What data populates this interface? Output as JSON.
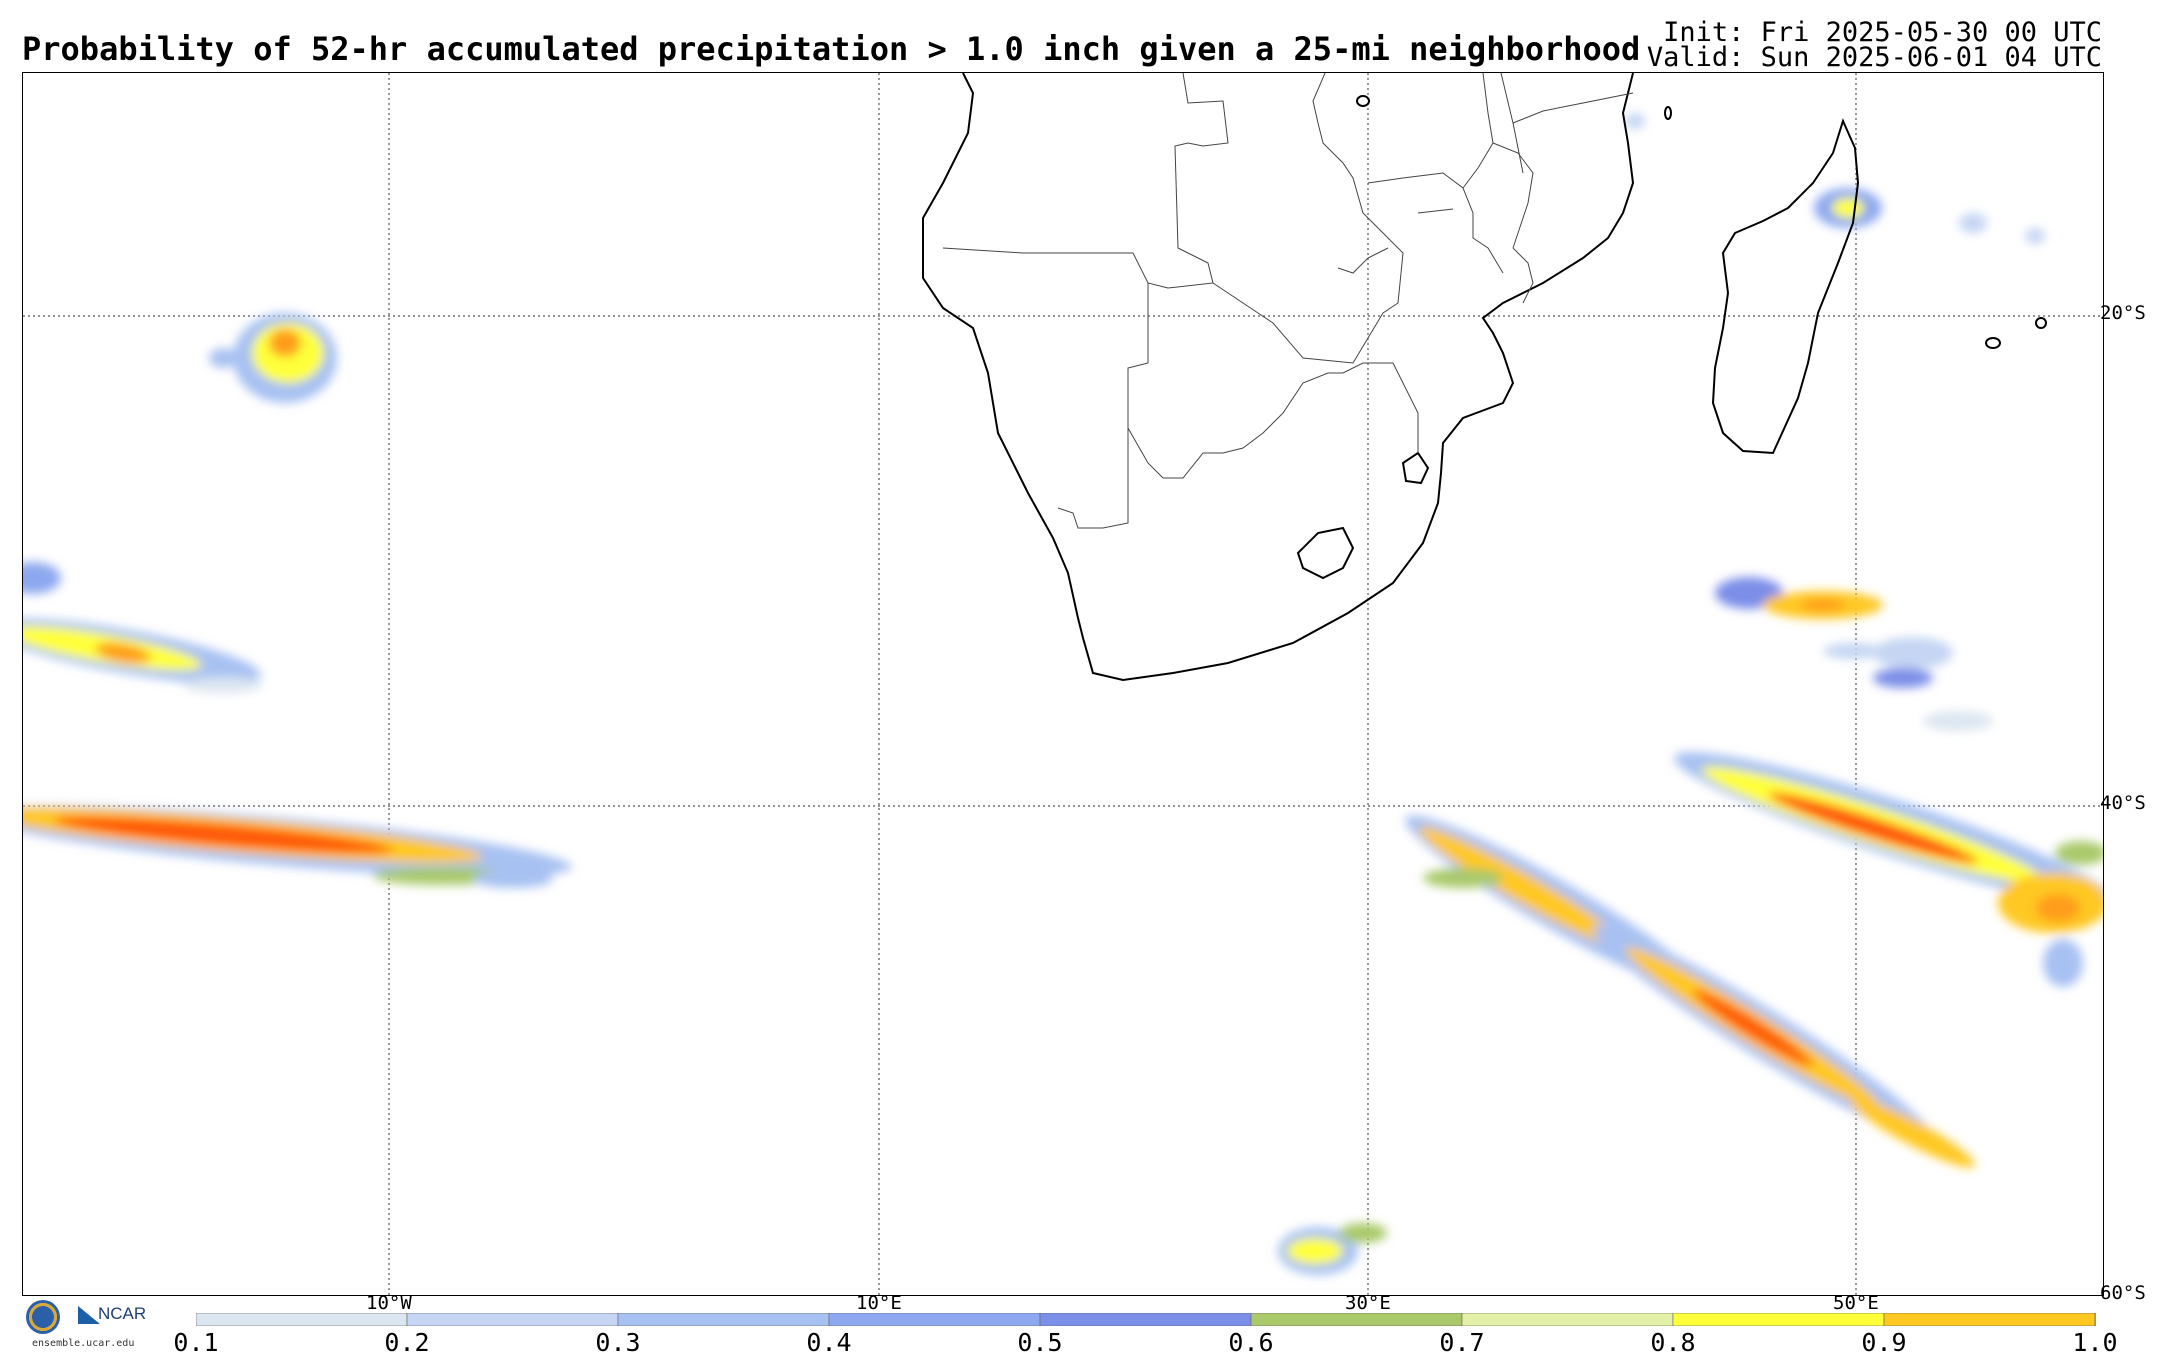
{
  "header": {
    "title": "Probability of 52-hr accumulated precipitation > 1.0 inch given a 25-mi neighborhood",
    "init": "Init: Fri 2025-05-30 00 UTC",
    "valid": "Valid: Sun 2025-06-01 04 UTC"
  },
  "map": {
    "lon_labels": [
      "10°W",
      "10°E",
      "30°E",
      "50°E"
    ],
    "lat_labels": [
      "20°S",
      "40°S",
      "60°S"
    ]
  },
  "colorbar": {
    "ticks": [
      "0.1",
      "0.2",
      "0.3",
      "0.4",
      "0.5",
      "0.6",
      "0.7",
      "0.8",
      "0.9",
      "1.0"
    ],
    "colors": [
      "#dce6f1",
      "#c5d5f3",
      "#a7c1f2",
      "#8da8f0",
      "#7b8ee8",
      "#a9c96a",
      "#e3f0a8",
      "#ffff3a",
      "#ffc820",
      "#ff9c1c"
    ]
  },
  "logos": {
    "nsf": "NSF",
    "ncar": "NCAR",
    "url": "ensemble.ucar.edu"
  }
}
